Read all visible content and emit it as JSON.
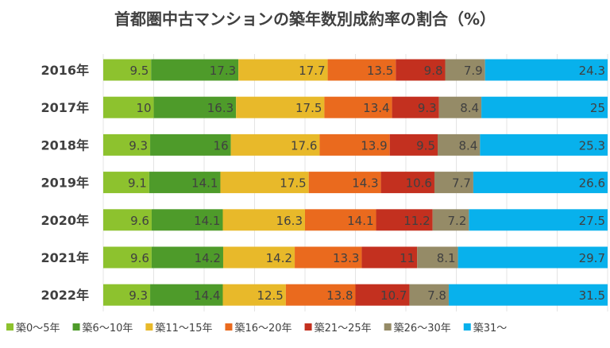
{
  "chart_data": {
    "type": "bar",
    "orientation": "horizontal",
    "stacked": "100%",
    "title": "首都圏中古マンションの築年数別成約率の割合（%）",
    "categories": [
      "2016年",
      "2017年",
      "2018年",
      "2019年",
      "2020年",
      "2021年",
      "2022年"
    ],
    "series": [
      {
        "name": "築0～5年",
        "color": "#8DC22E",
        "values": [
          9.5,
          10,
          9.3,
          9.1,
          9.6,
          9.6,
          9.3
        ]
      },
      {
        "name": "築6～10年",
        "color": "#4E9B2A",
        "values": [
          17.3,
          16.3,
          16,
          14.1,
          14.1,
          14.2,
          14.4
        ]
      },
      {
        "name": "築11～15年",
        "color": "#E8B92A",
        "values": [
          17.7,
          17.5,
          17.6,
          17.5,
          16.3,
          14.2,
          12.5
        ]
      },
      {
        "name": "築16～20年",
        "color": "#EA6A1E",
        "values": [
          13.5,
          13.4,
          13.9,
          14.3,
          14.1,
          13.3,
          13.8
        ]
      },
      {
        "name": "築21～25年",
        "color": "#C3301F",
        "values": [
          9.8,
          9.3,
          9.5,
          10.6,
          11.2,
          11,
          10.7
        ]
      },
      {
        "name": "築26～30年",
        "color": "#958B67",
        "values": [
          7.9,
          8.4,
          8.4,
          7.7,
          7.2,
          8.1,
          7.8
        ]
      },
      {
        "name": "築31～",
        "color": "#08B1EC",
        "values": [
          24.3,
          25,
          25.3,
          26.6,
          27.5,
          29.7,
          31.5
        ]
      }
    ],
    "xlim": [
      0,
      100
    ],
    "grid": true,
    "data_labels": true,
    "legend": "bottom"
  }
}
